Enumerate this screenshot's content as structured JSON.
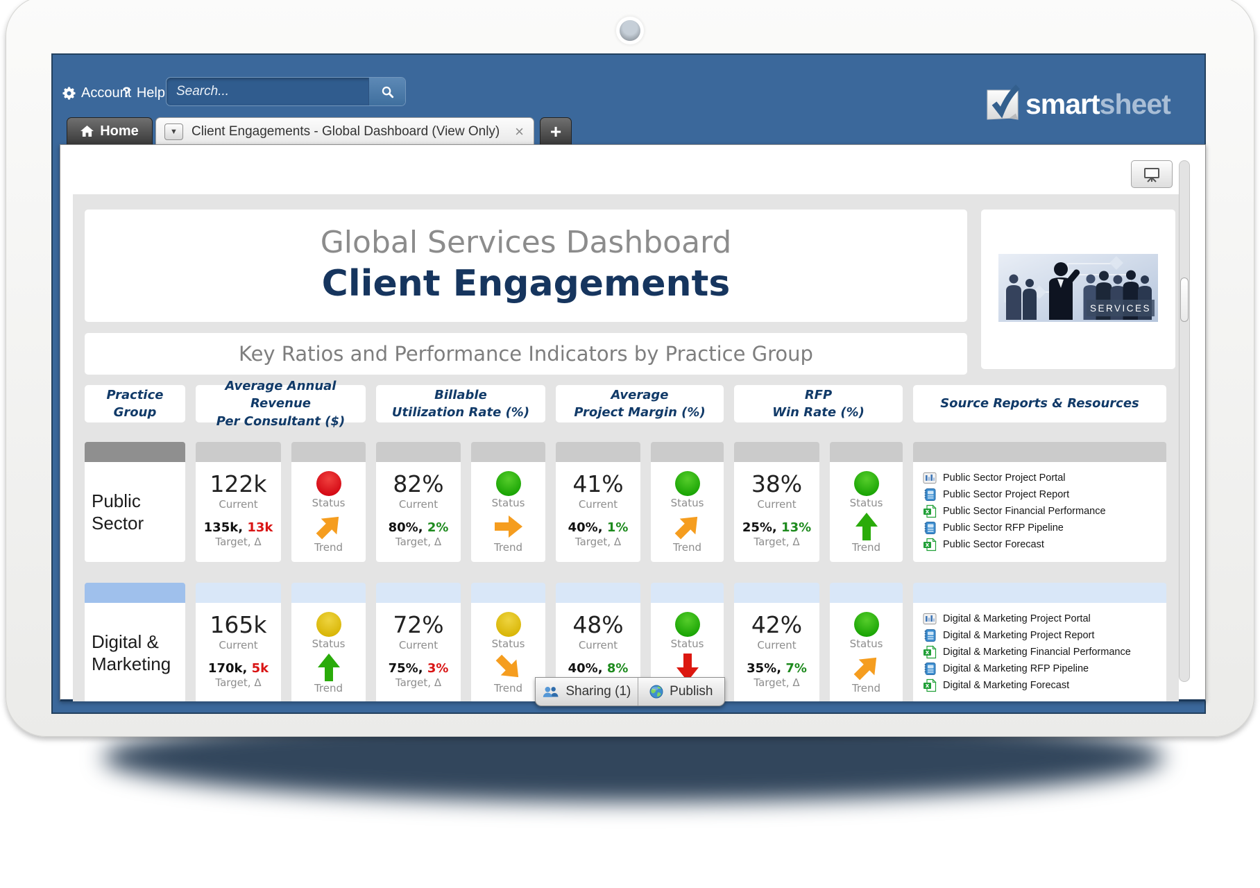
{
  "chrome": {
    "account_label": "Account",
    "help_label": "Help",
    "search_placeholder": "Search...",
    "logo_smart": "smart",
    "logo_sheet": "sheet"
  },
  "tabs": {
    "home_label": "Home",
    "active_title": "Client Engagements - Global Dashboard (View Only)",
    "close_glyph": "×",
    "new_tab_glyph": "+"
  },
  "footer": {
    "sharing_label": "Sharing (1)",
    "publish_label": "Publish"
  },
  "dashboard": {
    "title_line1": "Global Services Dashboard",
    "title_line2": "Client Engagements",
    "subtitle": "Key Ratios and Performance Indicators by Practice Group",
    "image_caption": "SERVICES",
    "labels": {
      "current": "Current",
      "target": "Target, Δ",
      "status": "Status",
      "trend": "Trend"
    },
    "columns": [
      {
        "line1": "Practice",
        "line2": "Group"
      },
      {
        "line1": "Average Annual Revenue",
        "line2": "Per Consultant ($)"
      },
      {
        "line1": "Billable",
        "line2": "Utilization Rate (%)"
      },
      {
        "line1": "Average",
        "line2": "Project Margin (%)"
      },
      {
        "line1": "RFP",
        "line2": "Win Rate (%)"
      },
      {
        "line1": "Source Reports & Resources",
        "line2": ""
      }
    ],
    "rows": [
      {
        "practice": "Public Sector",
        "band_practice": "#8f8f8f",
        "band_metric": "#cbcbcb",
        "metrics": [
          {
            "current": "122k",
            "target": "135k,",
            "delta": "13k",
            "delta_color": "red",
            "status": "red",
            "trend_dir": "up-right",
            "trend_color": "orange"
          },
          {
            "current": "82%",
            "target": "80%,",
            "delta": "2%",
            "delta_color": "green",
            "status": "green",
            "trend_dir": "right",
            "trend_color": "orange"
          },
          {
            "current": "41%",
            "target": "40%,",
            "delta": "1%",
            "delta_color": "green",
            "status": "green",
            "trend_dir": "up-right",
            "trend_color": "orange"
          },
          {
            "current": "38%",
            "target": "25%,",
            "delta": "13%",
            "delta_color": "green",
            "status": "green",
            "trend_dir": "up",
            "trend_color": "green"
          }
        ],
        "links": [
          {
            "icon": "portal",
            "label": "Public Sector Project Portal"
          },
          {
            "icon": "report",
            "label": "Public Sector Project Report"
          },
          {
            "icon": "sheet",
            "label": "Public Sector Financial Performance"
          },
          {
            "icon": "report",
            "label": "Public Sector RFP Pipeline"
          },
          {
            "icon": "sheet",
            "label": "Public Sector Forecast"
          }
        ]
      },
      {
        "practice": "Digital & Marketing",
        "band_practice": "#9fc0ec",
        "band_metric": "#d9e7f8",
        "metrics": [
          {
            "current": "165k",
            "target": "170k,",
            "delta": "5k",
            "delta_color": "red",
            "status": "yellow",
            "trend_dir": "up",
            "trend_color": "green"
          },
          {
            "current": "72%",
            "target": "75%,",
            "delta": "3%",
            "delta_color": "red",
            "status": "yellow",
            "trend_dir": "down-right",
            "trend_color": "orange"
          },
          {
            "current": "48%",
            "target": "40%,",
            "delta": "8%",
            "delta_color": "green",
            "status": "green",
            "trend_dir": "down",
            "trend_color": "red"
          },
          {
            "current": "42%",
            "target": "35%,",
            "delta": "7%",
            "delta_color": "green",
            "status": "green",
            "trend_dir": "up-right",
            "trend_color": "orange"
          }
        ],
        "links": [
          {
            "icon": "portal",
            "label": "Digital & Marketing Project Portal"
          },
          {
            "icon": "report",
            "label": "Digital & Marketing Project Report"
          },
          {
            "icon": "sheet",
            "label": "Digital & Marketing Financial Performance"
          },
          {
            "icon": "report",
            "label": "Digital & Marketing RFP Pipeline"
          },
          {
            "icon": "sheet",
            "label": "Digital & Marketing Forecast"
          }
        ]
      }
    ]
  },
  "colors": {
    "screen_blue": "#3b689b",
    "navy_accent": "#16355e",
    "status": {
      "red": [
        "#f0413e",
        "#d30713"
      ],
      "green": [
        "#56cd2b",
        "#18a303"
      ],
      "yellow": [
        "#eed440",
        "#d8b505"
      ]
    },
    "trend": {
      "orange": "#f59d1f",
      "green": "#2aab0a",
      "red": "#dc1810"
    },
    "delta": {
      "red": "#d91515",
      "green": "#1d8a1d"
    }
  }
}
